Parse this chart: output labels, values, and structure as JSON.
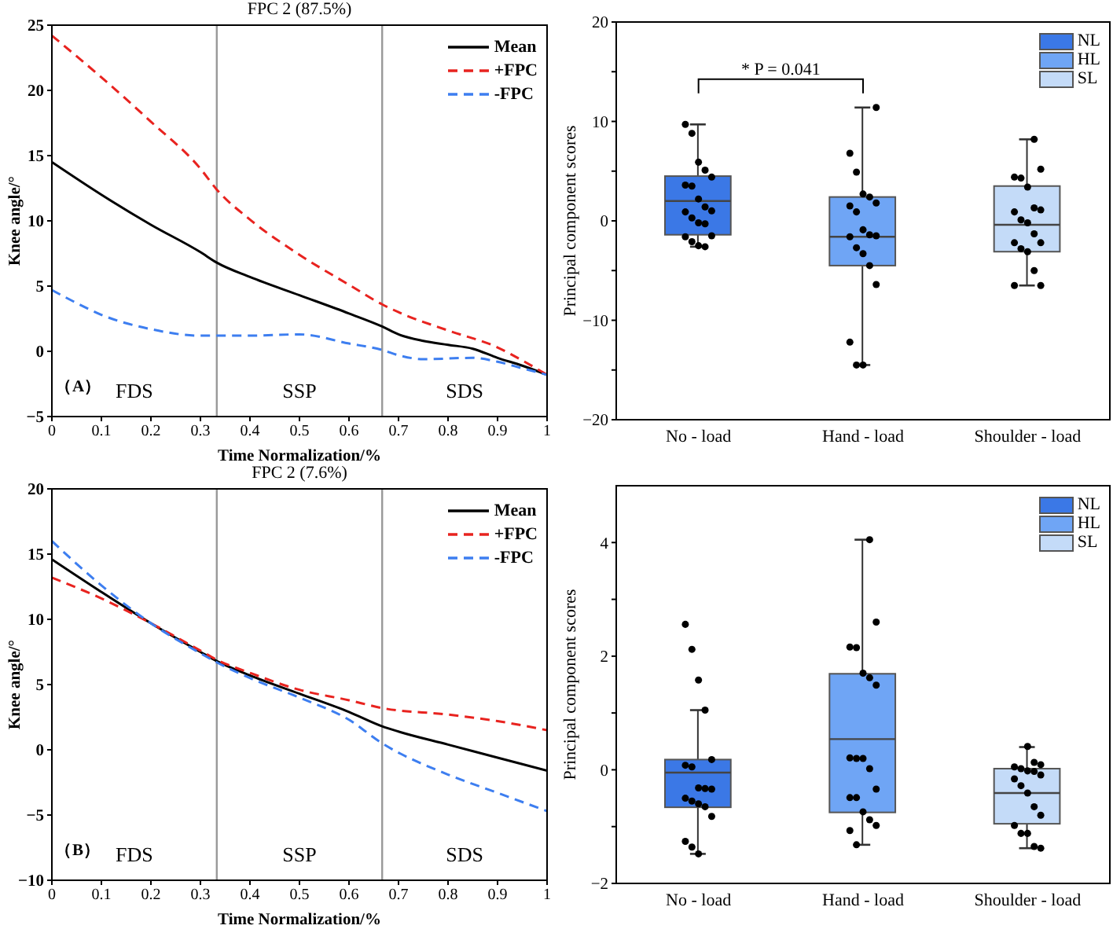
{
  "chart_data": [
    {
      "type": "line",
      "title": "FPC 2 (87.5%)",
      "xlabel": "Time Normalization/%",
      "ylabel": "Knee angle/°",
      "xlim": [
        0,
        1
      ],
      "xticks": [
        0,
        0.1,
        0.2,
        0.3,
        0.4,
        0.5,
        0.6,
        0.7,
        0.8,
        0.9,
        1
      ],
      "ylim": [
        -5,
        25
      ],
      "yticks": [
        -5,
        0,
        5,
        10,
        15,
        20,
        25
      ],
      "legend": "top right",
      "annotations": [
        "（A）",
        "FDS",
        "SSP",
        "SDS"
      ],
      "ref_lines": [
        {
          "axis": "x",
          "value": 0.333,
          "color": "#999999"
        },
        {
          "axis": "x",
          "value": 0.667,
          "color": "#999999"
        }
      ],
      "series": [
        {
          "name": "Mean",
          "color": "#000000",
          "line_style": "solid",
          "x": [
            0,
            0.1,
            0.2,
            0.3,
            0.333,
            0.4,
            0.5,
            0.6,
            0.667,
            0.7,
            0.75,
            0.8,
            0.85,
            0.9,
            0.95,
            1
          ],
          "values": [
            14.5,
            12.0,
            9.7,
            7.6,
            6.8,
            5.7,
            4.3,
            2.9,
            1.9,
            1.3,
            0.8,
            0.5,
            0.2,
            -0.5,
            -1.1,
            -1.8
          ]
        },
        {
          "name": "+FPC",
          "color": "#e8231f",
          "line_style": "dashed",
          "x": [
            0,
            0.1,
            0.2,
            0.3,
            0.333,
            0.4,
            0.5,
            0.6,
            0.667,
            0.7,
            0.8,
            0.9,
            0.95,
            1
          ],
          "values": [
            24.2,
            21.0,
            17.6,
            14.0,
            12.4,
            10.1,
            7.4,
            5.1,
            3.6,
            3.0,
            1.6,
            0.3,
            -0.7,
            -1.8
          ]
        },
        {
          "name": "-FPC",
          "color": "#3d7ef0",
          "line_style": "dashed",
          "x": [
            0,
            0.05,
            0.1,
            0.2,
            0.3,
            0.4,
            0.5,
            0.6,
            0.667,
            0.7,
            0.75,
            0.85,
            0.9,
            0.95,
            1
          ],
          "values": [
            4.7,
            3.7,
            2.8,
            1.7,
            1.2,
            1.2,
            1.3,
            0.6,
            0.1,
            -0.3,
            -0.6,
            -0.5,
            -0.8,
            -1.3,
            -1.8
          ]
        }
      ]
    },
    {
      "type": "box",
      "categories": [
        "No - load",
        "Hand - load",
        "Shoulder - load"
      ],
      "ylabel": "Principal component scores",
      "ylim": [
        -20,
        20
      ],
      "yticks": [
        -20,
        {
          "value": -15,
          "label": null
        },
        -10,
        {
          "value": -5,
          "label": null
        },
        0,
        {
          "value": 5,
          "label": null
        },
        10,
        {
          "value": 15,
          "label": null
        },
        20
      ],
      "legend": "top right",
      "marker": "circle",
      "annotations": [
        "* P = 0.041"
      ],
      "series": [
        {
          "name": "NL",
          "color": "#3b78e6",
          "boxes": [
            {
              "low": -2.6,
              "q1": -1.4,
              "median": 2.0,
              "q3": 4.5,
              "high": 9.7
            },
            null,
            null
          ]
        },
        {
          "name": "HL",
          "color": "#6fa5f5",
          "boxes": [
            null,
            {
              "low": -14.5,
              "q1": -4.5,
              "median": -1.6,
              "q3": 2.4,
              "high": 11.4
            },
            null
          ]
        },
        {
          "name": "SL",
          "color": "#c4dbf8",
          "boxes": [
            null,
            null,
            {
              "low": -6.5,
              "q1": -3.1,
              "median": -0.4,
              "q3": 3.5,
              "high": 8.2
            }
          ]
        },
        {
          "type": "scatter",
          "color": "#000000",
          "x": [
            "No - load",
            "No - load",
            "No - load",
            "No - load",
            "No - load",
            "No - load",
            "No - load",
            "No - load",
            "No - load",
            "No - load",
            "No - load",
            "No - load",
            "No - load",
            "No - load",
            "No - load",
            "No - load",
            "No - load",
            "No - load",
            "No - load",
            "Hand - load",
            "Hand - load",
            "Hand - load",
            "Hand - load",
            "Hand - load",
            "Hand - load",
            "Hand - load",
            "Hand - load",
            "Hand - load",
            "Hand - load",
            "Hand - load",
            "Hand - load",
            "Hand - load",
            "Hand - load",
            "Hand - load",
            "Hand - load",
            "Hand - load",
            "Hand - load",
            "Hand - load",
            "Shoulder - load",
            "Shoulder - load",
            "Shoulder - load",
            "Shoulder - load",
            "Shoulder - load",
            "Shoulder - load",
            "Shoulder - load",
            "Shoulder - load",
            "Shoulder - load",
            "Shoulder - load",
            "Shoulder - load",
            "Shoulder - load",
            "Shoulder - load",
            "Shoulder - load",
            "Shoulder - load",
            "Shoulder - load",
            "Shoulder - load",
            "Shoulder - load"
          ],
          "values": [
            9.7,
            8.8,
            5.9,
            5.1,
            4.4,
            3.6,
            3.5,
            2.2,
            1.4,
            1.0,
            0.9,
            0.3,
            -0.2,
            -0.3,
            -1.5,
            -1.6,
            -2.1,
            -2.5,
            -2.6,
            11.4,
            6.8,
            4.9,
            2.7,
            2.4,
            1.8,
            1.5,
            0.9,
            -0.9,
            -1.4,
            -1.5,
            -1.6,
            -2.7,
            -3.3,
            -4.5,
            -6.4,
            -12.2,
            -14.5,
            -14.5,
            8.2,
            5.2,
            4.4,
            4.3,
            3.4,
            1.3,
            1.1,
            0.9,
            0.1,
            -0.2,
            -1.3,
            -2.2,
            -2.2,
            -2.8,
            -3.1,
            -5.0,
            -6.5,
            -6.5
          ]
        }
      ]
    },
    {
      "type": "line",
      "title": "FPC 2 (7.6%)",
      "xlabel": "Time Normalization/%",
      "ylabel": "Knee angle/°",
      "xlim": [
        0,
        1
      ],
      "xticks": [
        0,
        0.1,
        0.2,
        0.3,
        0.4,
        0.5,
        0.6,
        0.7,
        0.8,
        0.9,
        1
      ],
      "ylim": [
        -10,
        20
      ],
      "yticks": [
        -10,
        -5,
        0,
        5,
        10,
        15,
        20
      ],
      "legend": "top right",
      "annotations": [
        "（B）",
        "FDS",
        "SSP",
        "SDS"
      ],
      "ref_lines": [
        {
          "axis": "x",
          "value": 0.333,
          "color": "#999999"
        },
        {
          "axis": "x",
          "value": 0.667,
          "color": "#999999"
        }
      ],
      "series": [
        {
          "name": "Mean",
          "color": "#000000",
          "line_style": "solid",
          "x": [
            0,
            0.1,
            0.2,
            0.3,
            0.333,
            0.4,
            0.5,
            0.6,
            0.667,
            0.7,
            0.8,
            0.9,
            1
          ],
          "values": [
            14.6,
            12.1,
            9.7,
            7.5,
            6.8,
            5.7,
            4.3,
            2.9,
            1.8,
            1.4,
            0.4,
            -0.6,
            -1.6
          ]
        },
        {
          "name": "+FPC",
          "color": "#e8231f",
          "line_style": "dashed",
          "x": [
            0,
            0.1,
            0.2,
            0.3,
            0.333,
            0.4,
            0.5,
            0.6,
            0.667,
            0.8,
            0.9,
            1
          ],
          "values": [
            13.2,
            11.6,
            9.7,
            7.6,
            6.9,
            5.9,
            4.6,
            3.8,
            3.2,
            2.7,
            2.2,
            1.5
          ]
        },
        {
          "name": "-FPC",
          "color": "#3d7ef0",
          "line_style": "dashed",
          "x": [
            0,
            0.1,
            0.2,
            0.3,
            0.333,
            0.4,
            0.5,
            0.6,
            0.667,
            0.8,
            0.9,
            1
          ],
          "values": [
            16.0,
            12.6,
            9.7,
            7.4,
            6.7,
            5.5,
            4.0,
            2.3,
            0.5,
            -1.9,
            -3.3,
            -4.7
          ]
        }
      ]
    },
    {
      "type": "box",
      "categories": [
        "No - load",
        "Hand - load",
        "Shoulder - load"
      ],
      "ylabel": "Principal component scores",
      "ylim": [
        -2,
        5
      ],
      "yticks": [
        -2,
        {
          "value": -1,
          "label": null
        },
        0,
        {
          "value": 1,
          "label": null
        },
        2,
        {
          "value": 3,
          "label": null
        },
        4
      ],
      "legend": "top right",
      "marker": "circle",
      "series": [
        {
          "name": "NL",
          "color": "#3b78e6",
          "boxes": [
            {
              "low": -1.48,
              "q1": -0.66,
              "median": -0.05,
              "q3": 0.18,
              "high": 1.05
            },
            null,
            null
          ]
        },
        {
          "name": "HL",
          "color": "#6fa5f5",
          "boxes": [
            null,
            {
              "low": -1.32,
              "q1": -0.75,
              "median": 0.54,
              "q3": 1.69,
              "high": 4.05
            },
            null
          ]
        },
        {
          "name": "SL",
          "color": "#c4dbf8",
          "boxes": [
            null,
            null,
            {
              "low": -1.38,
              "q1": -0.95,
              "median": -0.41,
              "q3": 0.02,
              "high": 0.4
            }
          ]
        },
        {
          "type": "scatter",
          "color": "#000000",
          "x": [
            "No - load",
            "No - load",
            "No - load",
            "No - load",
            "No - load",
            "No - load",
            "No - load",
            "No - load",
            "No - load",
            "No - load",
            "No - load",
            "No - load",
            "No - load",
            "No - load",
            "No - load",
            "No - load",
            "No - load",
            "No - load",
            "Hand - load",
            "Hand - load",
            "Hand - load",
            "Hand - load",
            "Hand - load",
            "Hand - load",
            "Hand - load",
            "Hand - load",
            "Hand - load",
            "Hand - load",
            "Hand - load",
            "Hand - load",
            "Hand - load",
            "Hand - load",
            "Hand - load",
            "Hand - load",
            "Hand - load",
            "Hand - load",
            "Hand - load",
            "Shoulder - load",
            "Shoulder - load",
            "Shoulder - load",
            "Shoulder - load",
            "Shoulder - load",
            "Shoulder - load",
            "Shoulder - load",
            "Shoulder - load",
            "Shoulder - load",
            "Shoulder - load",
            "Shoulder - load",
            "Shoulder - load",
            "Shoulder - load",
            "Shoulder - load",
            "Shoulder - load",
            "Shoulder - load",
            "Shoulder - load",
            "Shoulder - load"
          ],
          "values": [
            2.56,
            2.12,
            1.58,
            1.05,
            0.18,
            0.08,
            0.05,
            -0.32,
            -0.33,
            -0.34,
            -0.5,
            -0.55,
            -0.6,
            -0.65,
            -0.82,
            -1.26,
            -1.36,
            -1.48,
            4.05,
            2.6,
            2.16,
            2.15,
            1.7,
            1.62,
            1.49,
            0.21,
            0.2,
            0.2,
            0.02,
            -0.34,
            -0.49,
            -0.49,
            -0.74,
            -0.88,
            -0.98,
            -1.07,
            -1.32,
            0.41,
            0.13,
            0.09,
            0.05,
            0.02,
            -0.02,
            -0.03,
            -0.09,
            -0.16,
            -0.28,
            -0.41,
            -0.65,
            -0.8,
            -0.98,
            -1.12,
            -1.12,
            -1.35,
            -1.38
          ]
        }
      ]
    }
  ]
}
